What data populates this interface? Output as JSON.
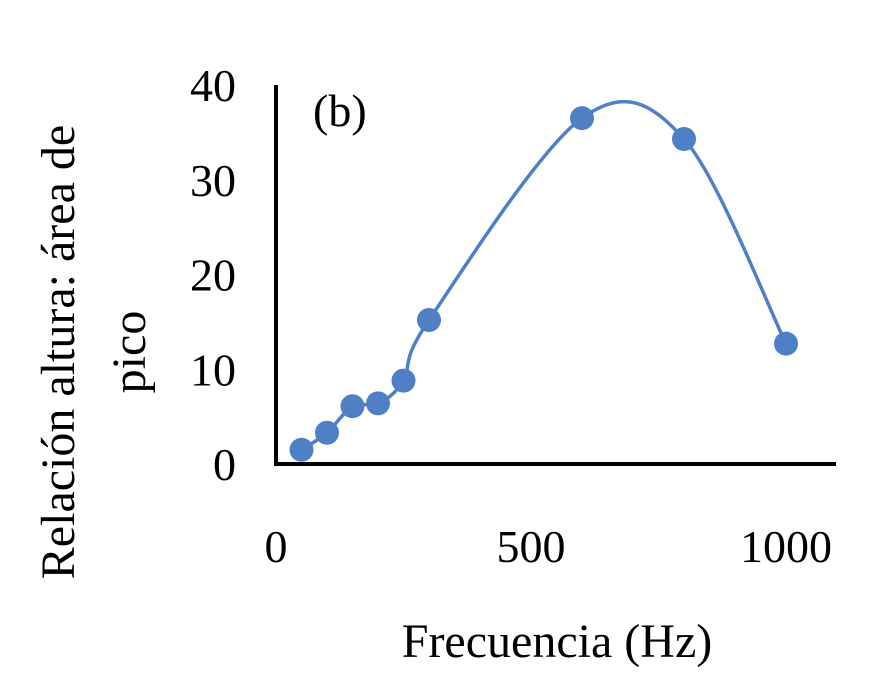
{
  "chart_data": {
    "type": "scatter",
    "panel_label": "(b)",
    "title": "",
    "xlabel": "Frecuencia (Hz)",
    "ylabel_line1": "Relación altura: área de",
    "ylabel_line2": "pico",
    "xlim": [
      0,
      1000
    ],
    "ylim": [
      0,
      40
    ],
    "xticks": [
      0,
      500,
      1000
    ],
    "yticks": [
      0,
      10,
      20,
      30,
      40
    ],
    "grid": false,
    "legend": false,
    "smoothed_line": true,
    "series": [
      {
        "x": [
          50,
          100,
          150,
          200,
          250,
          300,
          600,
          800,
          1000
        ],
        "y": [
          1.5,
          3.3,
          6.1,
          6.4,
          8.8,
          15.2,
          36.5,
          34.3,
          12.7
        ]
      }
    ],
    "colors": {
      "series": "#4f7fc4",
      "axis": "#000000"
    }
  }
}
